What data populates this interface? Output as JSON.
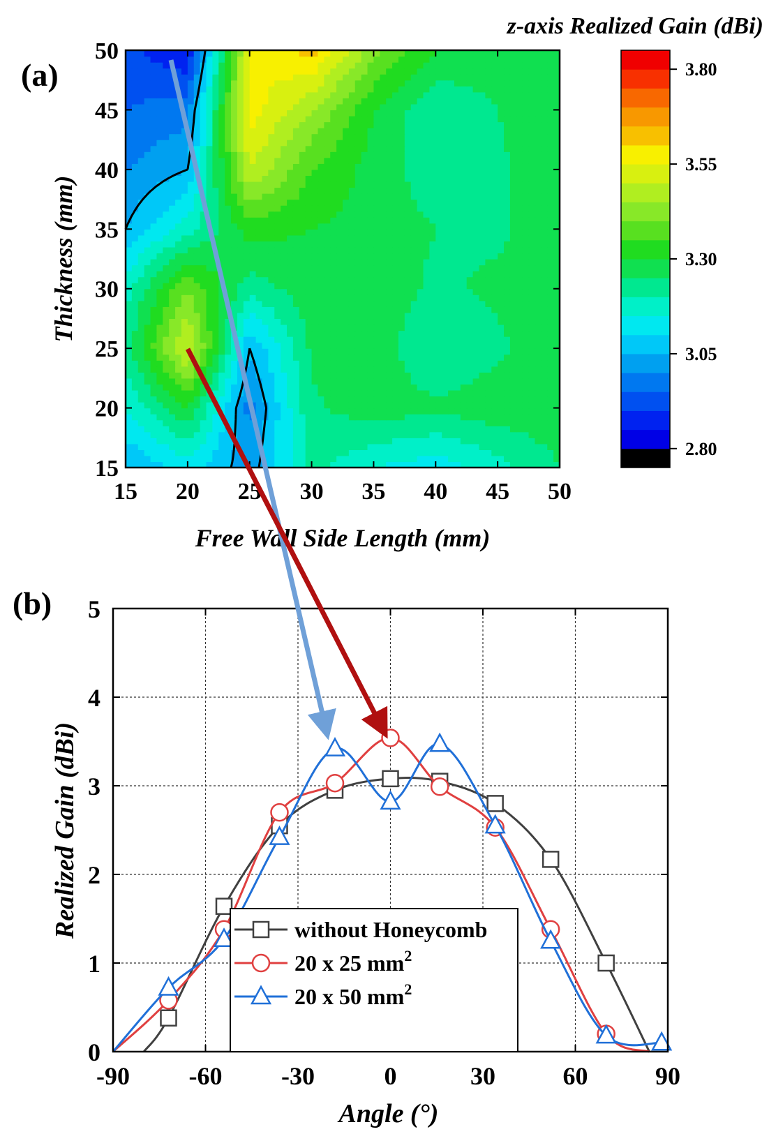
{
  "chart_data": [
    {
      "panel_label": "(a)",
      "type": "heatmap",
      "title": "z-axis Realized Gain (dBi)",
      "xlabel": "Free Wall Side Length (mm)",
      "ylabel": "Thickness (mm)",
      "xlim": [
        15,
        50
      ],
      "ylim": [
        15,
        50
      ],
      "xticks": [
        "15",
        "20",
        "25",
        "30",
        "35",
        "40",
        "45",
        "50"
      ],
      "yticks": [
        "15",
        "20",
        "25",
        "30",
        "35",
        "40",
        "45",
        "50"
      ],
      "x": [
        15,
        20,
        25,
        30,
        35,
        40,
        45,
        50
      ],
      "y": [
        15,
        20,
        25,
        30,
        35,
        40,
        45,
        50
      ],
      "z": [
        [
          3.05,
          3.12,
          3.02,
          3.22,
          3.15,
          3.12,
          3.18,
          3.25
        ],
        [
          3.15,
          3.3,
          2.98,
          3.24,
          3.28,
          3.26,
          3.28,
          3.28
        ],
        [
          3.22,
          3.52,
          3.05,
          3.26,
          3.28,
          3.2,
          3.24,
          3.28
        ],
        [
          3.18,
          3.4,
          3.22,
          3.28,
          3.28,
          3.24,
          3.26,
          3.28
        ],
        [
          3.05,
          3.18,
          3.32,
          3.3,
          3.28,
          3.25,
          3.24,
          3.28
        ],
        [
          3.0,
          3.05,
          3.5,
          3.35,
          3.28,
          3.22,
          3.24,
          3.28
        ],
        [
          2.95,
          2.98,
          3.58,
          3.45,
          3.3,
          3.2,
          3.25,
          3.3
        ],
        [
          2.92,
          2.85,
          3.55,
          3.62,
          3.42,
          3.3,
          3.28,
          3.3
        ]
      ],
      "colorbar": {
        "ticks": [
          "3.80",
          "3.55",
          "3.30",
          "3.05",
          "2.80"
        ],
        "tick_values": [
          3.8,
          3.55,
          3.3,
          3.05,
          2.8
        ],
        "range": [
          2.75,
          3.85
        ],
        "levels": [
          2.75,
          2.8,
          2.85,
          2.9,
          2.95,
          3.0,
          3.05,
          3.1,
          3.15,
          3.2,
          3.25,
          3.3,
          3.35,
          3.4,
          3.45,
          3.5,
          3.55,
          3.6,
          3.65,
          3.7,
          3.75,
          3.8,
          3.85
        ],
        "colors": [
          "#000000",
          "#0000e6",
          "#0022f0",
          "#0050f0",
          "#0078f0",
          "#00a0f0",
          "#00c8f8",
          "#00e8f0",
          "#00f0c8",
          "#00e890",
          "#10e050",
          "#20dc20",
          "#58e020",
          "#88e828",
          "#b0ee20",
          "#d8f010",
          "#f8f000",
          "#f8c000",
          "#f89800",
          "#f86800",
          "#f83000",
          "#f00000",
          "#808080"
        ]
      },
      "contour_level": 3.05
    },
    {
      "panel_label": "(b)",
      "type": "line",
      "xlabel": "Angle (°)",
      "ylabel": "Realized Gain (dBi)",
      "xlim": [
        -90,
        90
      ],
      "ylim": [
        0,
        5
      ],
      "xticks": [
        "-90",
        "-60",
        "-30",
        "0",
        "30",
        "60",
        "90"
      ],
      "yticks": [
        "0",
        "1",
        "2",
        "3",
        "4",
        "5"
      ],
      "grid": true,
      "legend_position": "bottom-center",
      "series": [
        {
          "name": "without Honeycomb",
          "marker": "square",
          "color": "#404040",
          "x": [
            -80,
            -72,
            -54,
            -36,
            -18,
            0,
            16,
            34,
            52,
            70,
            84
          ],
          "y": [
            0,
            0.38,
            1.64,
            2.55,
            2.95,
            3.08,
            3.05,
            2.8,
            2.17,
            1.0,
            0
          ],
          "marker_x": [
            -72,
            -54,
            -36,
            -18,
            0,
            16,
            34,
            52,
            70
          ],
          "marker_y": [
            0.38,
            1.64,
            2.55,
            2.95,
            3.08,
            3.05,
            2.8,
            2.17,
            1.0
          ]
        },
        {
          "name": "20 x 25 mm",
          "marker": "circle",
          "color": "#e04040",
          "x": [
            -90,
            -72,
            -54,
            -36,
            -18,
            0,
            16,
            34,
            52,
            70,
            84
          ],
          "y": [
            0,
            0.58,
            1.38,
            2.7,
            3.03,
            3.54,
            2.99,
            2.53,
            1.38,
            0.2,
            0
          ],
          "marker_x": [
            -72,
            -54,
            -36,
            -18,
            0,
            16,
            34,
            52,
            70
          ],
          "marker_y": [
            0.58,
            1.38,
            2.7,
            3.03,
            3.54,
            2.99,
            2.53,
            1.38,
            0.2
          ]
        },
        {
          "name": "20 x 50 mm",
          "marker": "triangle",
          "color": "#2070d8",
          "x": [
            -90,
            -72,
            -54,
            -36,
            -18,
            0,
            16,
            34,
            52,
            70,
            88
          ],
          "y": [
            0,
            0.72,
            1.27,
            2.42,
            3.42,
            2.82,
            3.47,
            2.55,
            1.25,
            0.18,
            0.1
          ],
          "marker_x": [
            -72,
            -54,
            -36,
            -18,
            0,
            16,
            34,
            52,
            70,
            88
          ],
          "marker_y": [
            0.72,
            1.27,
            2.42,
            3.42,
            2.82,
            3.47,
            2.55,
            1.25,
            0.18,
            0.1
          ]
        }
      ],
      "legend_superscript": "2"
    }
  ]
}
